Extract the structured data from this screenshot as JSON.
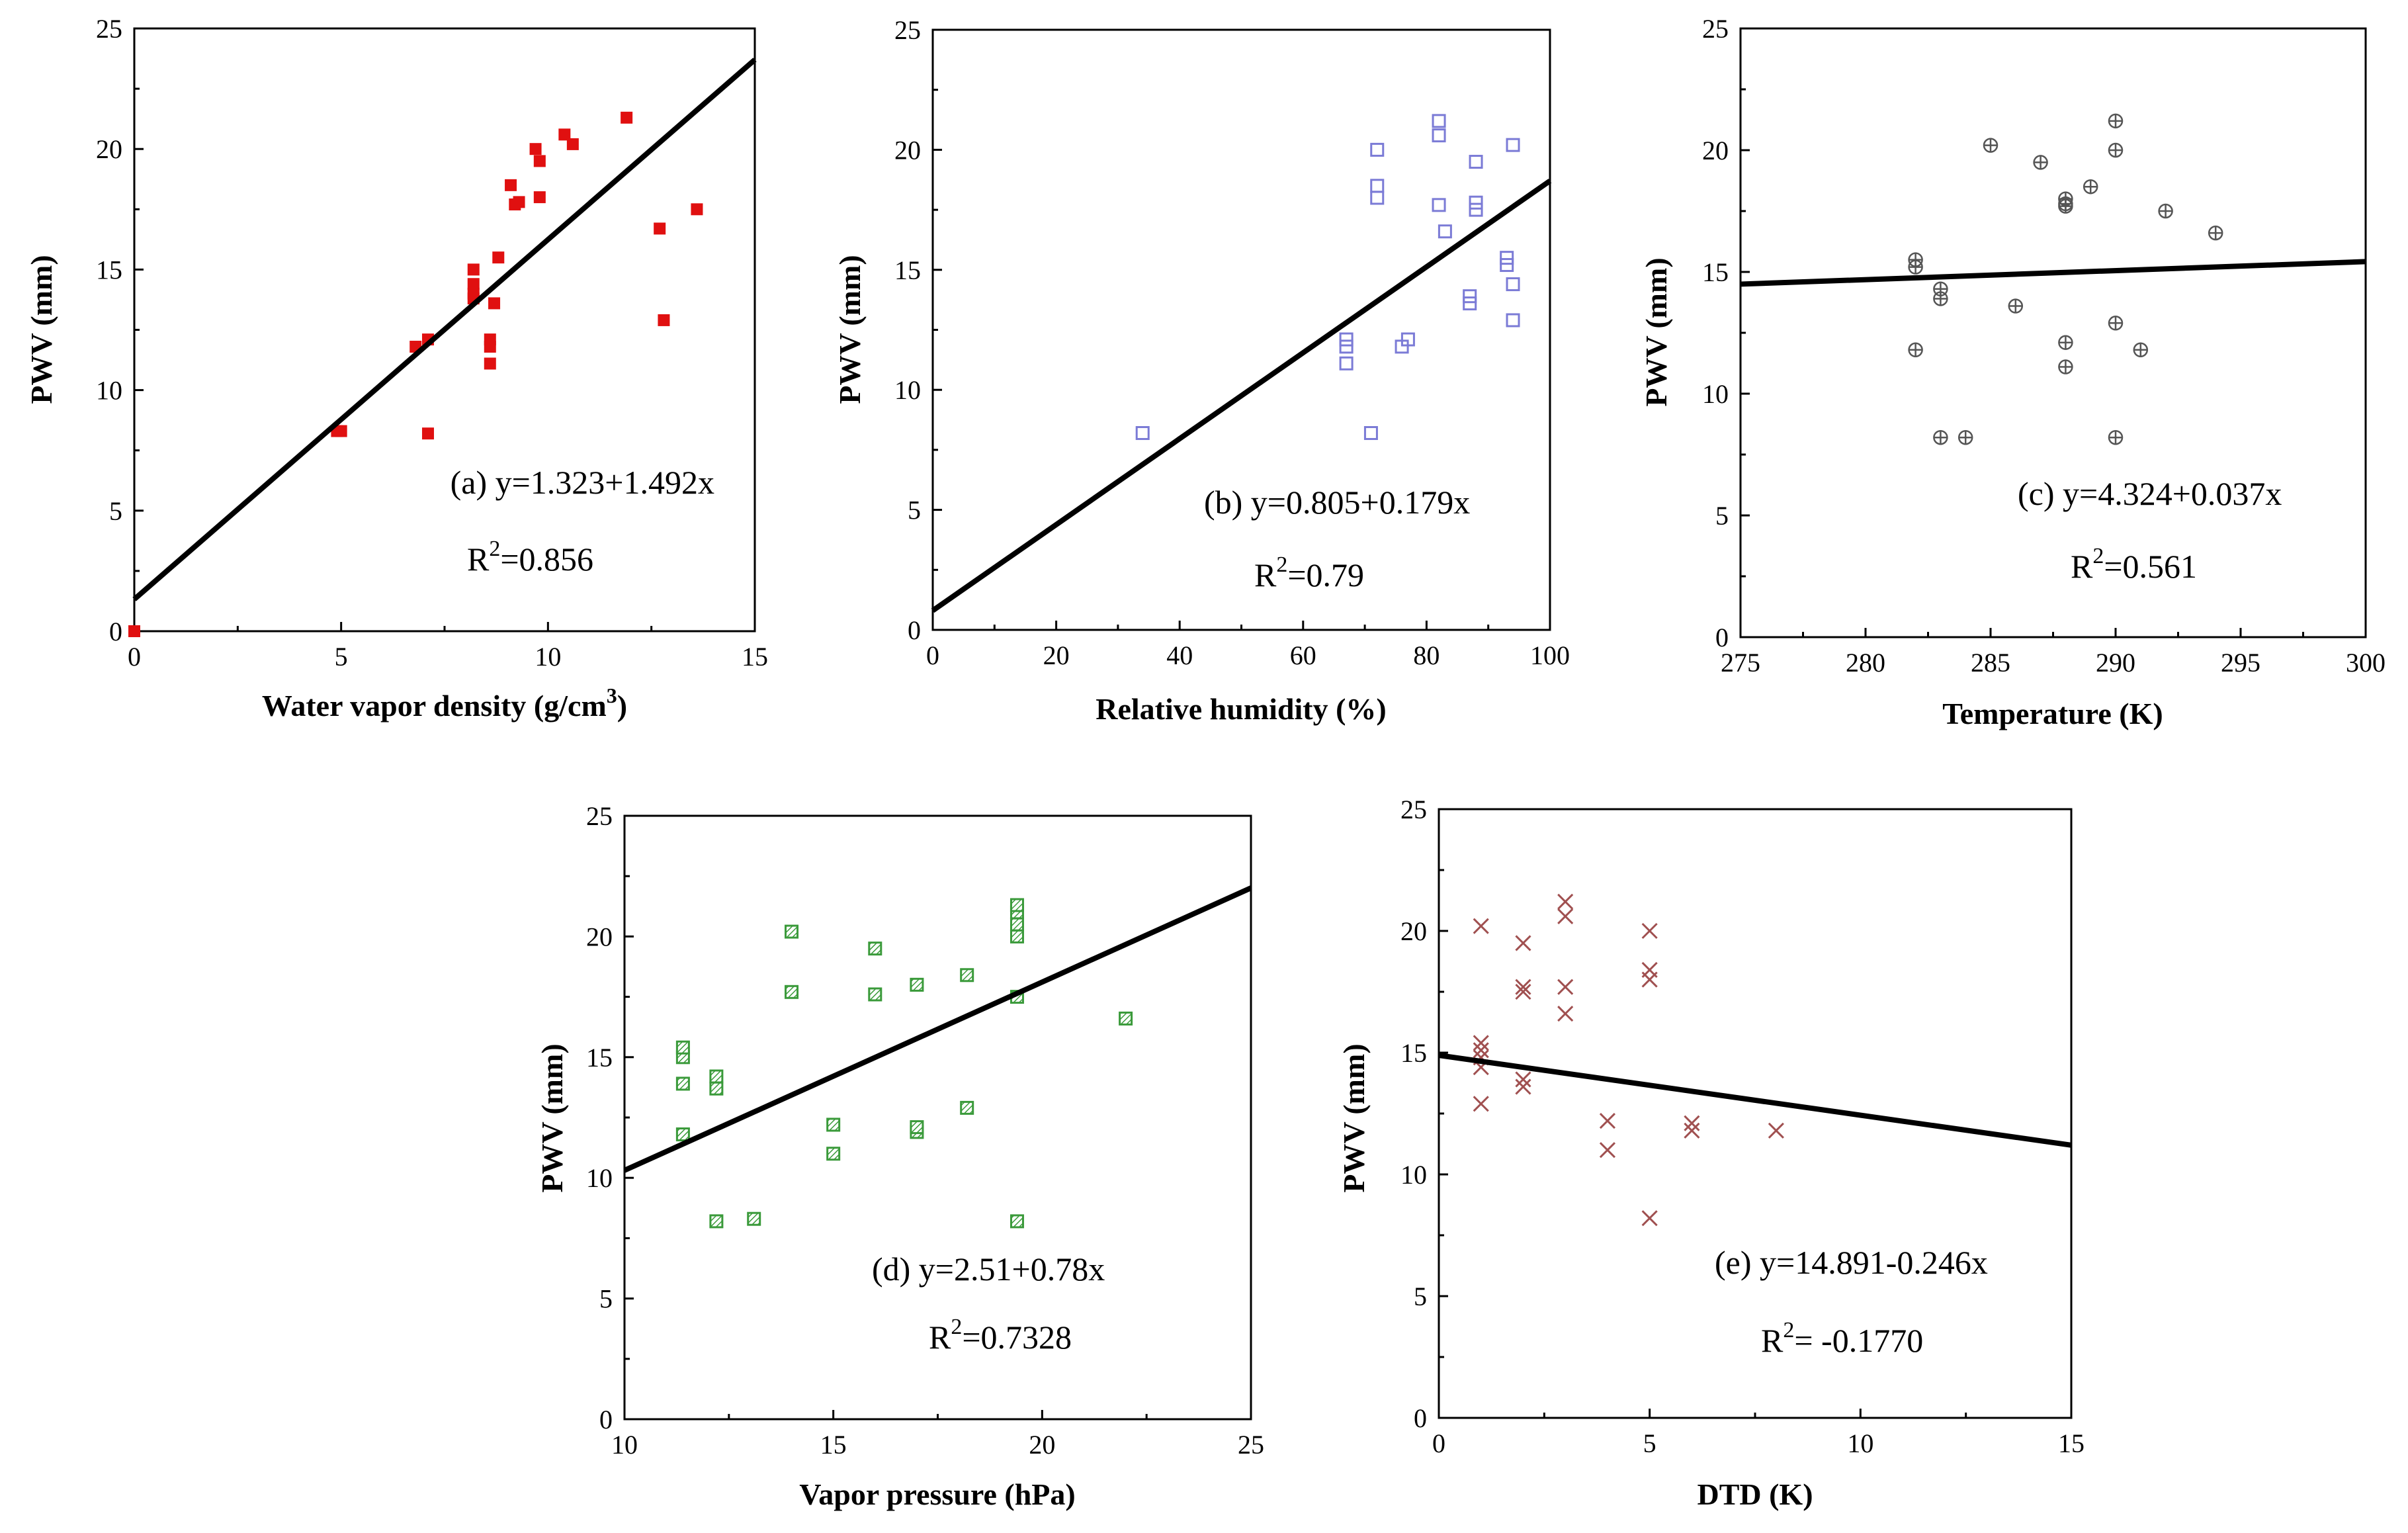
{
  "chart_data": [
    {
      "type": "scatter",
      "marker": "filled-square",
      "color": "#e01010",
      "xlabel": "Water vapor density (g/cm",
      "xlabel_sup": "3",
      "xlabel_end": ")",
      "ylabel": "PWV (mm)",
      "xlim": [
        0,
        15
      ],
      "ylim": [
        0,
        25
      ],
      "xticks": [
        0,
        5,
        10,
        15
      ],
      "yticks": [
        0,
        5,
        10,
        15,
        20,
        25
      ],
      "equation": "(a) y=1.323+1.492x",
      "r2_prefix": "R",
      "r2_sup": "2",
      "r2_value": "=0.856",
      "fit": {
        "intercept": 1.323,
        "slope": 1.492
      },
      "points": [
        [
          0,
          0
        ],
        [
          4.9,
          8.3
        ],
        [
          5.0,
          8.3
        ],
        [
          6.8,
          11.8
        ],
        [
          7.1,
          8.2
        ],
        [
          7.1,
          12.1
        ],
        [
          8.2,
          13.8
        ],
        [
          8.2,
          14.0
        ],
        [
          8.2,
          14.4
        ],
        [
          8.2,
          15.0
        ],
        [
          8.6,
          11.1
        ],
        [
          8.6,
          11.8
        ],
        [
          8.6,
          12.1
        ],
        [
          8.7,
          13.6
        ],
        [
          8.8,
          15.5
        ],
        [
          9.1,
          18.5
        ],
        [
          9.2,
          17.7
        ],
        [
          9.3,
          17.8
        ],
        [
          9.7,
          20.0
        ],
        [
          9.8,
          19.5
        ],
        [
          9.8,
          18.0
        ],
        [
          10.4,
          20.6
        ],
        [
          10.6,
          20.2
        ],
        [
          11.9,
          21.3
        ],
        [
          12.7,
          16.7
        ],
        [
          12.8,
          12.9
        ],
        [
          13.6,
          17.5
        ]
      ]
    },
    {
      "type": "scatter",
      "marker": "open-square",
      "color": "#7b7bd6",
      "xlabel": "Relative humidity (%)",
      "ylabel": "PWV (mm)",
      "xlim": [
        0,
        100
      ],
      "ylim": [
        0,
        25
      ],
      "xticks": [
        0,
        20,
        40,
        60,
        80,
        100
      ],
      "yticks": [
        0,
        5,
        10,
        15,
        20,
        25
      ],
      "equation": "(b) y=0.805+0.179x",
      "r2_prefix": "R",
      "r2_sup": "2",
      "r2_value": "=0.79",
      "fit": {
        "intercept": 0.805,
        "slope": 0.179
      },
      "points": [
        [
          34,
          8.2
        ],
        [
          67,
          11.1
        ],
        [
          67,
          11.8
        ],
        [
          67,
          12.1
        ],
        [
          71,
          8.2
        ],
        [
          72,
          18.0
        ],
        [
          72,
          18.5
        ],
        [
          72,
          20.0
        ],
        [
          76,
          11.8
        ],
        [
          77,
          12.1
        ],
        [
          82,
          17.7
        ],
        [
          82,
          20.6
        ],
        [
          82,
          21.2
        ],
        [
          83,
          16.6
        ],
        [
          87,
          13.6
        ],
        [
          87,
          13.9
        ],
        [
          88,
          17.5
        ],
        [
          88,
          17.8
        ],
        [
          88,
          19.5
        ],
        [
          93,
          15.2
        ],
        [
          93,
          15.5
        ],
        [
          94,
          12.9
        ],
        [
          94,
          14.4
        ],
        [
          94,
          20.2
        ]
      ]
    },
    {
      "type": "scatter",
      "marker": "circle-plus",
      "color": "#555555",
      "xlabel": "Temperature (K)",
      "ylabel": "PWV (mm)",
      "xlim": [
        275,
        300
      ],
      "ylim": [
        0,
        25
      ],
      "xticks": [
        275,
        280,
        285,
        290,
        295,
        300
      ],
      "yticks": [
        0,
        5,
        10,
        15,
        20,
        25
      ],
      "equation": "(c) y=4.324+0.037x",
      "r2_prefix": "R",
      "r2_sup": "2",
      "r2_value": "=0.561",
      "fit": {
        "intercept": 4.324,
        "slope": 0.037
      },
      "points": [
        [
          282,
          11.8
        ],
        [
          282,
          15.2
        ],
        [
          282,
          15.5
        ],
        [
          283,
          8.2
        ],
        [
          283,
          13.9
        ],
        [
          283,
          14.3
        ],
        [
          284,
          8.2
        ],
        [
          285,
          20.2
        ],
        [
          286,
          13.6
        ],
        [
          287,
          19.5
        ],
        [
          288,
          11.1
        ],
        [
          288,
          12.1
        ],
        [
          288,
          17.7
        ],
        [
          288,
          17.8
        ],
        [
          288,
          18.0
        ],
        [
          289,
          18.5
        ],
        [
          290,
          8.2
        ],
        [
          290,
          12.9
        ],
        [
          290,
          20.0
        ],
        [
          290,
          21.2
        ],
        [
          291,
          11.8
        ],
        [
          292,
          17.5
        ],
        [
          294,
          16.6
        ]
      ]
    },
    {
      "type": "scatter",
      "marker": "hatched-square",
      "color": "#3a9a3a",
      "xlabel": "Vapor pressure (hPa)",
      "ylabel": "PWV (mm)",
      "xlim": [
        10,
        25
      ],
      "ylim": [
        0,
        25
      ],
      "xticks": [
        10,
        15,
        20,
        25
      ],
      "yticks": [
        0,
        5,
        10,
        15,
        20,
        25
      ],
      "equation": "(d) y=2.51+0.78x",
      "r2_prefix": "R",
      "r2_sup": "2",
      "r2_value": "=0.7328",
      "fit": {
        "intercept": 2.51,
        "slope": 0.78
      },
      "points": [
        [
          11.4,
          11.8
        ],
        [
          11.4,
          13.9
        ],
        [
          11.4,
          15.0
        ],
        [
          11.4,
          15.4
        ],
        [
          12.2,
          8.2
        ],
        [
          12.2,
          13.7
        ],
        [
          12.2,
          14.2
        ],
        [
          13.1,
          8.3
        ],
        [
          14.0,
          17.7
        ],
        [
          14.0,
          20.2
        ],
        [
          15.0,
          11.0
        ],
        [
          15.0,
          12.2
        ],
        [
          16.0,
          17.6
        ],
        [
          16.0,
          19.5
        ],
        [
          17.0,
          11.9
        ],
        [
          17.0,
          12.1
        ],
        [
          17.0,
          18.0
        ],
        [
          18.2,
          12.9
        ],
        [
          18.2,
          18.4
        ],
        [
          19.4,
          8.2
        ],
        [
          19.4,
          17.5
        ],
        [
          19.4,
          20.0
        ],
        [
          19.4,
          20.5
        ],
        [
          19.4,
          21.0
        ],
        [
          19.4,
          21.3
        ],
        [
          22.0,
          16.6
        ]
      ]
    },
    {
      "type": "scatter",
      "marker": "x-cross",
      "color": "#a05050",
      "xlabel": "DTD (K)",
      "ylabel": "PWV (mm)",
      "xlim": [
        0,
        15
      ],
      "ylim": [
        0,
        25
      ],
      "xticks": [
        0,
        5,
        10,
        15
      ],
      "yticks": [
        0,
        5,
        10,
        15,
        20,
        25
      ],
      "equation": "(e) y=14.891-0.246x",
      "r2_prefix": "R",
      "r2_sup": "2",
      "r2_value": "= -0.1770",
      "fit": {
        "intercept": 14.891,
        "slope": -0.246
      },
      "points": [
        [
          1,
          12.9
        ],
        [
          1,
          14.4
        ],
        [
          1,
          14.8
        ],
        [
          1,
          15.1
        ],
        [
          1,
          15.4
        ],
        [
          1,
          20.2
        ],
        [
          2,
          13.6
        ],
        [
          2,
          13.9
        ],
        [
          2,
          17.5
        ],
        [
          2,
          17.7
        ],
        [
          2,
          19.5
        ],
        [
          3,
          16.6
        ],
        [
          3,
          17.7
        ],
        [
          3,
          20.6
        ],
        [
          3,
          21.2
        ],
        [
          4,
          11.0
        ],
        [
          4,
          12.2
        ],
        [
          5,
          8.2
        ],
        [
          5,
          18.0
        ],
        [
          5,
          18.4
        ],
        [
          5,
          20.0
        ],
        [
          6,
          11.8
        ],
        [
          6,
          12.1
        ],
        [
          8,
          11.8
        ]
      ]
    }
  ]
}
